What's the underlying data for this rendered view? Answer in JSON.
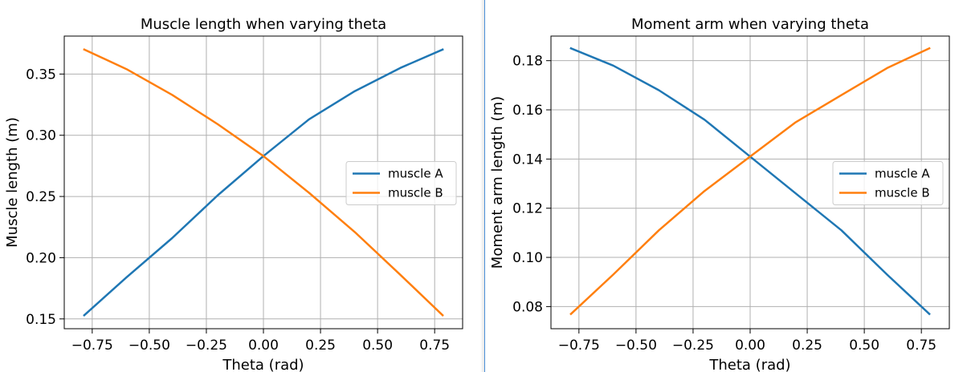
{
  "chart_data": [
    {
      "type": "line",
      "title": "Muscle length when varying theta",
      "xlabel": "Theta (rad)",
      "ylabel": "Muscle length (m)",
      "xlim": [
        -0.8725,
        0.8725
      ],
      "ylim": [
        0.142,
        0.381
      ],
      "xticks": [
        -0.75,
        -0.5,
        -0.25,
        0.0,
        0.25,
        0.5,
        0.75
      ],
      "xtick_labels": [
        "−0.75",
        "−0.50",
        "−0.25",
        "0.00",
        "0.25",
        "0.50",
        "0.75"
      ],
      "yticks": [
        0.15,
        0.2,
        0.25,
        0.3,
        0.35
      ],
      "ytick_labels": [
        "0.15",
        "0.20",
        "0.25",
        "0.30",
        "0.35"
      ],
      "grid": true,
      "legend_position": "center-right",
      "x": [
        -0.785,
        -0.6,
        -0.4,
        -0.2,
        0.0,
        0.2,
        0.4,
        0.6,
        0.785
      ],
      "series": [
        {
          "name": "muscle A",
          "color": "#1f77b4",
          "values": [
            0.153,
            0.184,
            0.216,
            0.251,
            0.283,
            0.313,
            0.336,
            0.355,
            0.37
          ]
        },
        {
          "name": "muscle B",
          "color": "#ff7f0e",
          "values": [
            0.37,
            0.354,
            0.333,
            0.309,
            0.283,
            0.253,
            0.221,
            0.186,
            0.153
          ]
        }
      ]
    },
    {
      "type": "line",
      "title": "Moment arm when varying theta",
      "xlabel": "Theta (rad)",
      "ylabel": "Moment arm length (m)",
      "xlim": [
        -0.8725,
        0.8725
      ],
      "ylim": [
        0.071,
        0.19
      ],
      "xticks": [
        -0.75,
        -0.5,
        -0.25,
        0.0,
        0.25,
        0.5,
        0.75
      ],
      "xtick_labels": [
        "−0.75",
        "−0.50",
        "−0.25",
        "0.00",
        "0.25",
        "0.50",
        "0.75"
      ],
      "yticks": [
        0.08,
        0.1,
        0.12,
        0.14,
        0.16,
        0.18
      ],
      "ytick_labels": [
        "0.08",
        "0.10",
        "0.12",
        "0.14",
        "0.16",
        "0.18"
      ],
      "grid": true,
      "legend_position": "center-right",
      "x": [
        -0.785,
        -0.6,
        -0.4,
        -0.2,
        0.0,
        0.2,
        0.4,
        0.6,
        0.785
      ],
      "series": [
        {
          "name": "muscle A",
          "color": "#1f77b4",
          "values": [
            0.185,
            0.178,
            0.168,
            0.156,
            0.141,
            0.126,
            0.111,
            0.093,
            0.077
          ]
        },
        {
          "name": "muscle B",
          "color": "#ff7f0e",
          "values": [
            0.077,
            0.093,
            0.111,
            0.127,
            0.141,
            0.155,
            0.166,
            0.177,
            0.185
          ]
        }
      ]
    }
  ]
}
